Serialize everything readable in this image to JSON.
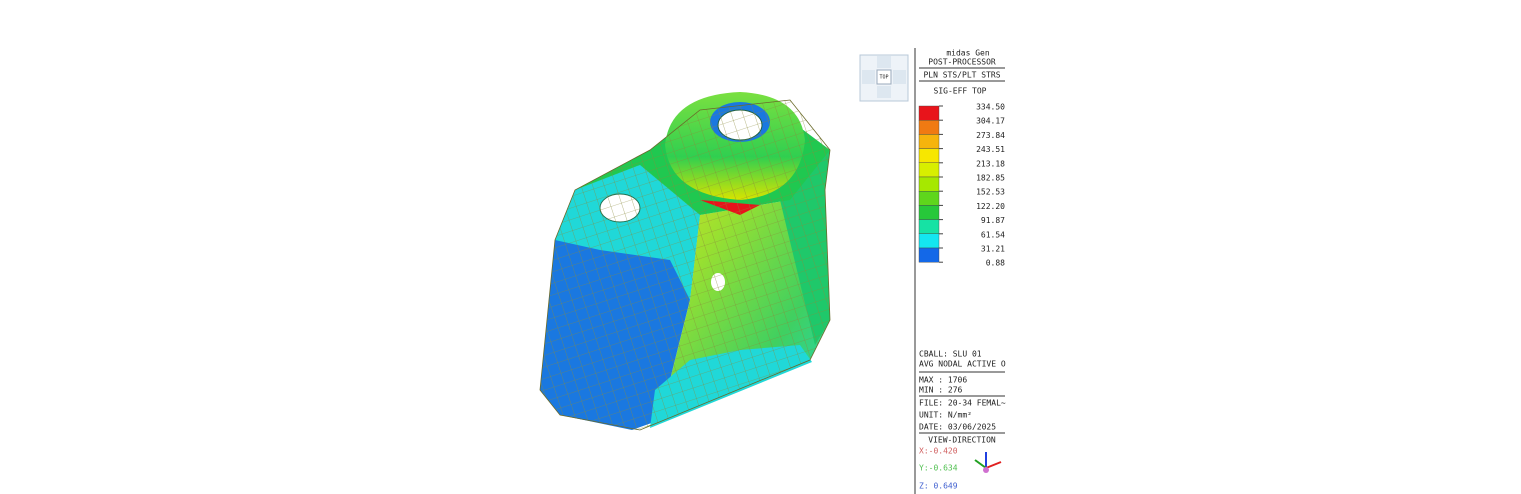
{
  "viewcube": {
    "label": "TOP"
  },
  "header": {
    "program": "midas Gen",
    "module": "POST-PROCESSOR",
    "result_type": "PLN STS/PLT STRS",
    "component": "SIG-EFF TOP"
  },
  "legend": {
    "labels": [
      "334.50",
      "304.17",
      "273.84",
      "243.51",
      "213.18",
      "182.85",
      "152.53",
      "122.20",
      "91.87",
      "61.54",
      "31.21",
      "0.88"
    ],
    "colors": [
      "#e8141b",
      "#f07a12",
      "#f6b40c",
      "#f7e700",
      "#d8ef00",
      "#a6e800",
      "#5fd61c",
      "#27c83a",
      "#16e2a4",
      "#14e6f0",
      "#1368e8"
    ]
  },
  "info": {
    "load_case": "CBALL: SLU 01",
    "averaging": "AVG NODAL ACTIVE O",
    "max": "MAX : 1706",
    "min": "MIN : 276",
    "file": "FILE: 20-34 FEMAL~",
    "unit": "UNIT: N/mm²",
    "date": "DATE: 03/06/2025"
  },
  "view_direction": {
    "title": "VIEW-DIRECTION",
    "x": "X:-0.420",
    "y": "Y:-0.634",
    "z": "Z: 0.649"
  }
}
